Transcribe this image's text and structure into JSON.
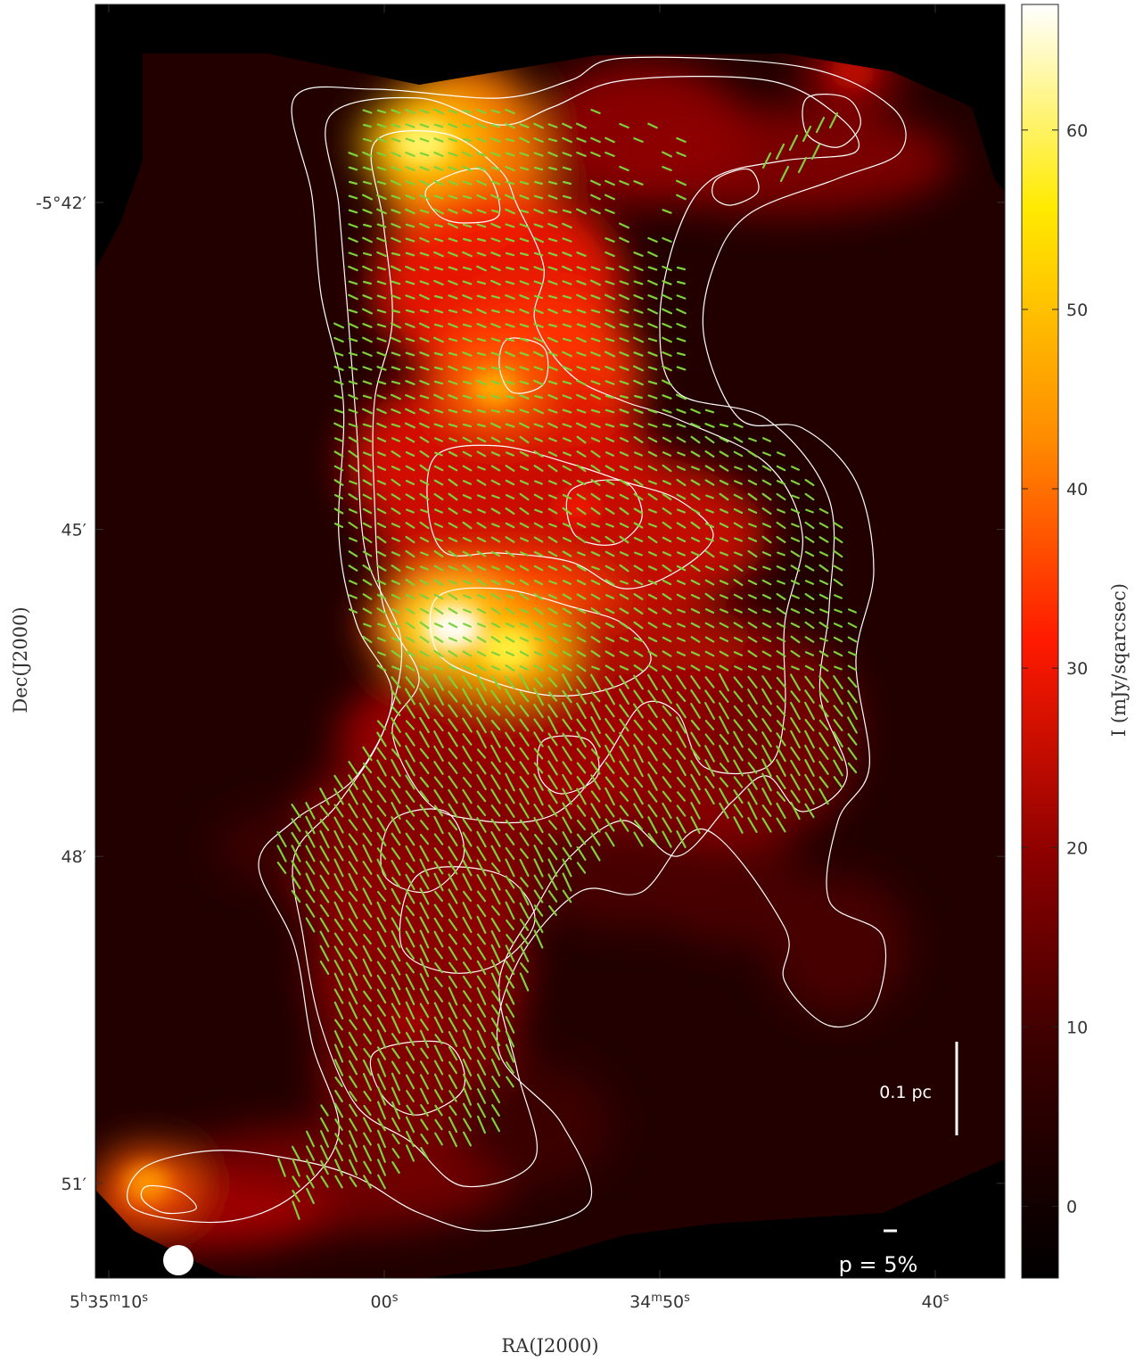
{
  "chart_data": {
    "type": "heatmap",
    "title": "",
    "xlabel": "RA(J2000)",
    "ylabel": "Dec(J2000)",
    "colorbar_label": "I (mJy/sqarcsec)",
    "colorbar_range": [
      -4,
      67
    ],
    "colorbar_ticks": [
      {
        "value": 60,
        "label": "60"
      },
      {
        "value": 50,
        "label": "50"
      },
      {
        "value": 40,
        "label": "40"
      },
      {
        "value": 30,
        "label": "30"
      },
      {
        "value": 20,
        "label": "20"
      },
      {
        "value": 10,
        "label": "10"
      },
      {
        "value": 0,
        "label": "0"
      }
    ],
    "colormap": [
      "#000000",
      "#3a0000",
      "#8b0000",
      "#ff1a00",
      "#ff8c00",
      "#ffea00",
      "#ffffff"
    ],
    "vector_color": "#7fd13b",
    "contour_color": "#ffffff",
    "x_ticks": [
      {
        "ra_s": 310,
        "label_main": "5",
        "label_unit1": "h",
        "label_mid": "35",
        "label_unit2": "m",
        "label_sec": "10",
        "label_unit3": "s"
      },
      {
        "ra_s": 300,
        "label_main": "",
        "label_unit1": "",
        "label_mid": "",
        "label_unit2": "",
        "label_sec": "00",
        "label_unit3": "s"
      },
      {
        "ra_s": 290,
        "label_main": "",
        "label_unit1": "",
        "label_mid": "34",
        "label_unit2": "m",
        "label_sec": "50",
        "label_unit3": "s"
      },
      {
        "ra_s": 280,
        "label_main": "",
        "label_unit1": "",
        "label_mid": "",
        "label_unit2": "",
        "label_sec": "40",
        "label_unit3": "s"
      }
    ],
    "y_ticks": [
      {
        "dec_arcmin": -42,
        "label": "-5°42′"
      },
      {
        "dec_arcmin": -45,
        "label": "45′"
      },
      {
        "dec_arcmin": -48,
        "label": "48′"
      },
      {
        "dec_arcmin": -51,
        "label": "51′"
      }
    ],
    "intensity_peaks": [
      {
        "ra_s": 298.6,
        "dec_arcmin": -41.45,
        "value": 60
      },
      {
        "ra_s": 296.0,
        "dec_arcmin": -43.7,
        "value": 48
      },
      {
        "ra_s": 297.5,
        "dec_arcmin": -45.9,
        "value": 67
      },
      {
        "ra_s": 295.5,
        "dec_arcmin": -46.1,
        "value": 58
      },
      {
        "ra_s": 293.0,
        "dec_arcmin": -44.8,
        "value": 30
      },
      {
        "ra_s": 299.0,
        "dec_arcmin": -49.5,
        "value": 22
      },
      {
        "ra_s": 308.6,
        "dec_arcmin": -51.0,
        "value": 45
      },
      {
        "ra_s": 283.0,
        "dec_arcmin": -40.8,
        "value": 25
      }
    ],
    "scale_bar_label": "0.1 pc",
    "vector_scale_label": "p = 5%",
    "beam": "circle, lower-left",
    "grid": false
  }
}
